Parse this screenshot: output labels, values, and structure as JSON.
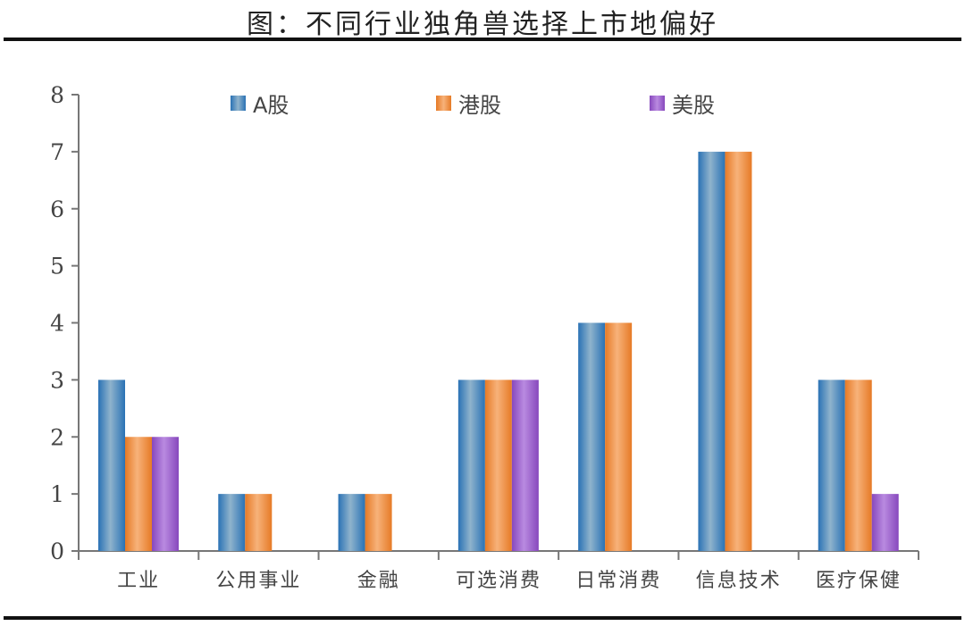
{
  "title": "图：不同行业独角兽选择上市地偏好",
  "legend": [
    {
      "label": "A股",
      "color": "#3b7fbf",
      "x": 258
    },
    {
      "label": "港股",
      "color": "#f0964a",
      "x": 488
    },
    {
      "label": "美股",
      "color": "#9b5fcf",
      "x": 727
    }
  ],
  "chart_data": {
    "type": "bar",
    "title": "图：不同行业独角兽选择上市地偏好",
    "xlabel": "",
    "ylabel": "",
    "ylim": [
      0,
      8
    ],
    "yticks": [
      0,
      1,
      2,
      3,
      4,
      5,
      6,
      7,
      8
    ],
    "grid": false,
    "legend_position": "top",
    "categories": [
      "工业",
      "公用事业",
      "金融",
      "可选消费",
      "日常消费",
      "信息技术",
      "医疗保健"
    ],
    "series": [
      {
        "name": "A股",
        "color": "#3b7fbf",
        "values": [
          3,
          1,
          1,
          3,
          4,
          7,
          3
        ]
      },
      {
        "name": "港股",
        "color": "#f0964a",
        "values": [
          2,
          1,
          1,
          3,
          4,
          7,
          3
        ]
      },
      {
        "name": "美股",
        "color": "#9b5fcf",
        "values": [
          2,
          0,
          0,
          3,
          0,
          0,
          1
        ]
      }
    ]
  }
}
